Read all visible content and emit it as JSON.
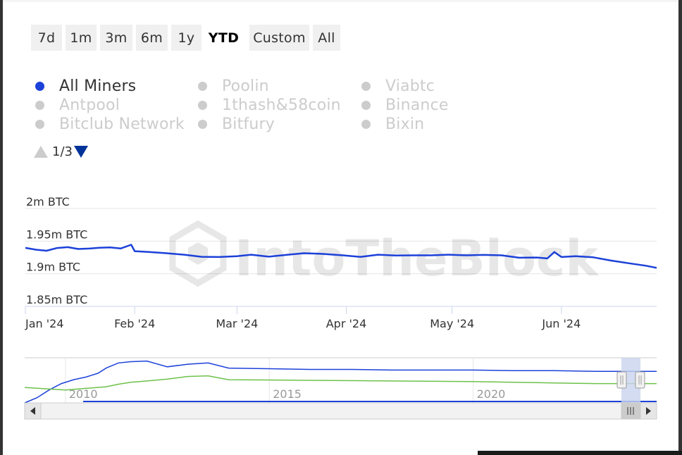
{
  "range_selector": {
    "buttons": [
      "7d",
      "1m",
      "3m",
      "6m",
      "1y",
      "YTD",
      "Custom",
      "All"
    ],
    "selected": "YTD"
  },
  "legend": {
    "items": [
      {
        "label": "All Miners",
        "enabled": true
      },
      {
        "label": "Poolin",
        "enabled": false
      },
      {
        "label": "Viabtc",
        "enabled": false
      },
      {
        "label": "Antpool",
        "enabled": false
      },
      {
        "label": "1thash&58coin",
        "enabled": false
      },
      {
        "label": "Binance",
        "enabled": false
      },
      {
        "label": "Bitclub Network",
        "enabled": false
      },
      {
        "label": "Bitfury",
        "enabled": false
      },
      {
        "label": "Bixin",
        "enabled": false
      }
    ],
    "page": "1/3"
  },
  "watermark": "IntoTheBlock",
  "colors": {
    "series": "#1c41d9",
    "navigator_series": "#1c41d9",
    "navigator_series_2": "#6dc14a",
    "navigator_mask": "#c8d3ee"
  },
  "icons": {
    "legend_prev": "triangle-up-icon",
    "legend_next": "triangle-down-icon",
    "scroll_left": "arrow-left-icon",
    "scroll_right": "arrow-right-icon",
    "grip": "grip-icon"
  },
  "chart_data": {
    "type": "line",
    "series": [
      {
        "name": "All Miners",
        "x": [
          "2024-01-01",
          "2024-01-04",
          "2024-01-07",
          "2024-01-10",
          "2024-01-13",
          "2024-01-16",
          "2024-01-19",
          "2024-01-22",
          "2024-01-25",
          "2024-01-28",
          "2024-01-31",
          "2024-02-01",
          "2024-02-05",
          "2024-02-10",
          "2024-02-15",
          "2024-02-20",
          "2024-02-25",
          "2024-03-01",
          "2024-03-05",
          "2024-03-10",
          "2024-03-15",
          "2024-03-20",
          "2024-03-25",
          "2024-03-31",
          "2024-04-05",
          "2024-04-10",
          "2024-04-15",
          "2024-04-20",
          "2024-04-25",
          "2024-04-30",
          "2024-05-05",
          "2024-05-10",
          "2024-05-15",
          "2024-05-20",
          "2024-05-25",
          "2024-05-28",
          "2024-05-30",
          "2024-06-01",
          "2024-06-05",
          "2024-06-10",
          "2024-06-15",
          "2024-06-20",
          "2024-06-25",
          "2024-06-28"
        ],
        "y": [
          1.9397,
          1.9369,
          1.9352,
          1.9395,
          1.9408,
          1.9379,
          1.9386,
          1.9398,
          1.9403,
          1.9387,
          1.9444,
          1.9346,
          1.9333,
          1.9315,
          1.9292,
          1.926,
          1.9256,
          1.9269,
          1.9292,
          1.9262,
          1.9289,
          1.9315,
          1.9305,
          1.9282,
          1.9259,
          1.9292,
          1.9279,
          1.9282,
          1.9282,
          1.9292,
          1.9282,
          1.9289,
          1.9282,
          1.9246,
          1.9249,
          1.9235,
          1.9333,
          1.9256,
          1.9269,
          1.9252,
          1.9203,
          1.9162,
          1.9123,
          1.909
        ]
      }
    ],
    "ylabel": "",
    "y_tick_labels": [
      "2m BTC",
      "1.95m BTC",
      "1.9m BTC",
      "1.85m BTC"
    ],
    "y_ticks": [
      2.0,
      1.95,
      1.9,
      1.85
    ],
    "ylim": [
      1.85,
      2.0
    ],
    "x_tick_labels": [
      "Jan '24",
      "Feb '24",
      "Mar '24",
      "Apr '24",
      "May '24",
      "Jun '24"
    ],
    "x_ticks": [
      "2024-01-01",
      "2024-02-01",
      "2024-03-01",
      "2024-04-01",
      "2024-05-01",
      "2024-06-01"
    ],
    "xlim": [
      "2024-01-01",
      "2024-06-28"
    ],
    "grid": true,
    "navigator": {
      "tick_labels": [
        "2010",
        "2015",
        "2020"
      ],
      "series": [
        {
          "x": [
            2009.0,
            2009.3,
            2009.6,
            2009.9,
            2010.2,
            2010.5,
            2010.8,
            2011.0,
            2011.3,
            2011.6,
            2012.0,
            2012.5,
            2013.0,
            2013.5,
            2014.0,
            2015.0,
            2016.0,
            2017.0,
            2018.0,
            2019.0,
            2020.0,
            2021.0,
            2022.0,
            2023.0,
            2024.5
          ],
          "y": [
            1.4,
            1.48,
            1.6,
            1.7,
            1.76,
            1.8,
            1.86,
            1.94,
            2.02,
            2.04,
            2.05,
            1.96,
            2.0,
            2.02,
            1.94,
            1.93,
            1.92,
            1.92,
            1.91,
            1.91,
            1.91,
            1.9,
            1.9,
            1.89,
            1.89
          ]
        },
        {
          "x": [
            2009.0,
            2010.0,
            2011.0,
            2011.3,
            2011.6,
            2012.0,
            2012.5,
            2013.0,
            2013.5,
            2014.0,
            2016.0,
            2018.0,
            2020.0,
            2021.0,
            2022.0,
            2023.0,
            2024.0,
            2024.5
          ],
          "y": [
            1.64,
            1.6,
            1.65,
            1.69,
            1.72,
            1.74,
            1.77,
            1.81,
            1.82,
            1.76,
            1.75,
            1.74,
            1.73,
            1.72,
            1.71,
            1.7,
            1.7,
            1.7
          ]
        }
      ]
    }
  }
}
